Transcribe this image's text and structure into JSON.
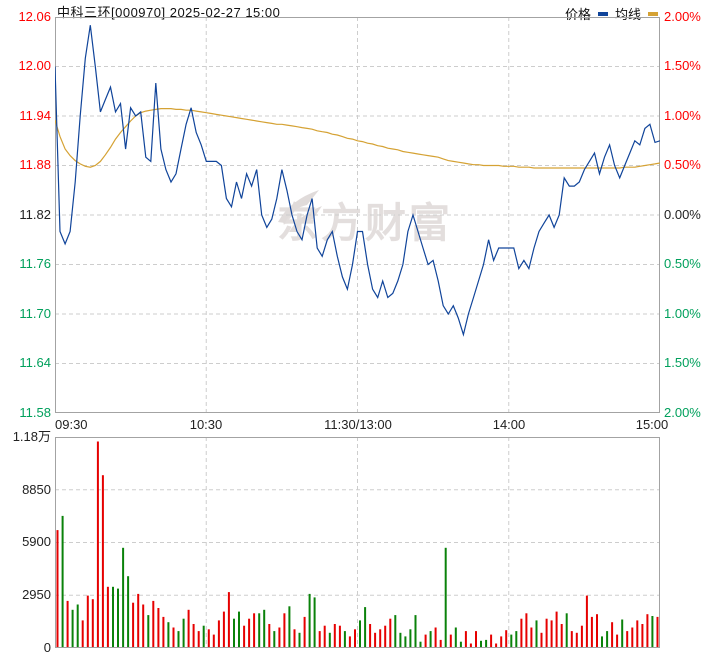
{
  "header": {
    "title": "中科三环[000970] 2025-02-27 15:00",
    "legend": [
      {
        "label": "价格",
        "color": "#10449a"
      },
      {
        "label": "均线",
        "color": "#d5a234"
      }
    ]
  },
  "watermark": {
    "text": "东方财富"
  },
  "colors": {
    "price_line": "#10449a",
    "avg_line": "#d5a234",
    "up_red": "#e60000",
    "down_green": "#0a820a",
    "axis_red": "#ff0000",
    "axis_green": "#00a05c",
    "grid": "#cdcdcd"
  },
  "chart_data": [
    {
      "type": "line",
      "title": "intraday price vs average price",
      "x_ticks": [
        "09:30",
        "10:30",
        "11:30/13:00",
        "14:00",
        "15:00"
      ],
      "x_total_minutes": 240,
      "x_step_minutes": 2,
      "prev_close": 11.82,
      "y_axis_left": {
        "labels": [
          "12.06",
          "12.00",
          "11.94",
          "11.88",
          "11.82",
          "11.76",
          "11.70",
          "11.64",
          "11.58"
        ],
        "max": 12.06,
        "min": 11.58
      },
      "y_axis_right": {
        "labels": [
          "2.00%",
          "1.50%",
          "1.00%",
          "0.50%",
          "0.00%",
          "0.50%",
          "1.00%",
          "1.50%",
          "2.00%"
        ],
        "max_pct": 2.0,
        "min_pct": -2.0
      },
      "grid": true,
      "legend_position": "top-right",
      "series": [
        {
          "name": "价格",
          "color": "#10449a",
          "values": [
            12.0,
            11.8,
            11.785,
            11.8,
            11.86,
            11.94,
            12.01,
            12.05,
            12.0,
            11.945,
            11.96,
            11.975,
            11.945,
            11.955,
            11.9,
            11.95,
            11.94,
            11.945,
            11.89,
            11.885,
            11.98,
            11.9,
            11.875,
            11.86,
            11.87,
            11.9,
            11.93,
            11.95,
            11.92,
            11.905,
            11.885,
            11.885,
            11.885,
            11.88,
            11.84,
            11.83,
            11.86,
            11.84,
            11.87,
            11.855,
            11.875,
            11.82,
            11.805,
            11.815,
            11.84,
            11.875,
            11.85,
            11.82,
            11.8,
            11.79,
            11.82,
            11.84,
            11.78,
            11.77,
            11.79,
            11.8,
            11.77,
            11.745,
            11.73,
            11.76,
            11.8,
            11.8,
            11.76,
            11.73,
            11.72,
            11.74,
            11.72,
            11.725,
            11.74,
            11.76,
            11.8,
            11.82,
            11.8,
            11.78,
            11.76,
            11.765,
            11.74,
            11.71,
            11.7,
            11.71,
            11.695,
            11.675,
            11.7,
            11.72,
            11.74,
            11.76,
            11.79,
            11.765,
            11.78,
            11.78,
            11.78,
            11.78,
            11.755,
            11.765,
            11.755,
            11.78,
            11.8,
            11.81,
            11.82,
            11.805,
            11.82,
            11.865,
            11.855,
            11.855,
            11.86,
            11.875,
            11.885,
            11.895,
            11.87,
            11.89,
            11.905,
            11.88,
            11.865,
            11.88,
            11.895,
            11.91,
            11.905,
            11.925,
            11.93,
            11.908,
            11.91
          ]
        },
        {
          "name": "均线",
          "color": "#d5a234",
          "values": [
            11.935,
            11.915,
            11.9,
            11.892,
            11.886,
            11.882,
            11.879,
            11.878,
            11.88,
            11.885,
            11.893,
            11.902,
            11.912,
            11.92,
            11.927,
            11.934,
            11.94,
            11.944,
            11.946,
            11.947,
            11.948,
            11.949,
            11.949,
            11.949,
            11.948,
            11.948,
            11.947,
            11.947,
            11.946,
            11.945,
            11.944,
            11.943,
            11.942,
            11.941,
            11.94,
            11.939,
            11.938,
            11.937,
            11.936,
            11.935,
            11.934,
            11.933,
            11.932,
            11.931,
            11.93,
            11.93,
            11.929,
            11.928,
            11.927,
            11.926,
            11.925,
            11.924,
            11.922,
            11.921,
            11.92,
            11.918,
            11.917,
            11.915,
            11.913,
            11.912,
            11.91,
            11.909,
            11.907,
            11.906,
            11.904,
            11.903,
            11.901,
            11.9,
            11.899,
            11.897,
            11.896,
            11.895,
            11.894,
            11.893,
            11.892,
            11.891,
            11.89,
            11.888,
            11.886,
            11.885,
            11.884,
            11.883,
            11.882,
            11.881,
            11.881,
            11.88,
            11.88,
            11.88,
            11.88,
            11.879,
            11.879,
            11.879,
            11.878,
            11.878,
            11.878,
            11.877,
            11.877,
            11.877,
            11.877,
            11.877,
            11.877,
            11.877,
            11.877,
            11.877,
            11.877,
            11.877,
            11.877,
            11.877,
            11.877,
            11.877,
            11.877,
            11.877,
            11.877,
            11.878,
            11.878,
            11.878,
            11.879,
            11.88,
            11.881,
            11.882,
            11.883
          ]
        }
      ]
    },
    {
      "type": "bar",
      "title": "volume (hands per minute)",
      "y_axis": {
        "labels": [
          "1.18万",
          "8850",
          "5900",
          "2950",
          "0"
        ],
        "max": 11800,
        "min": 0
      },
      "colors_key": {
        "r": "#e60000",
        "g": "#0a820a"
      },
      "bar_colors": "rgrggrrrrrrggggrrrgrrrgrggrrrgrrrrrggrrrggrgrrgrgrggrrgrrgrrggrrrrrggggggrgrrgrggrrrggrrrrggrrrgrrrrrgrrrrrrggrrgrrrrrgr",
      "values": [
        6600,
        7400,
        2600,
        2100,
        2400,
        1500,
        2900,
        2700,
        11600,
        9700,
        3400,
        3400,
        3300,
        5600,
        4000,
        2500,
        3000,
        2400,
        1800,
        2600,
        2200,
        1700,
        1400,
        1100,
        900,
        1600,
        2100,
        1300,
        900,
        1200,
        1000,
        700,
        1500,
        2000,
        3100,
        1600,
        2000,
        1200,
        1600,
        1900,
        1900,
        2100,
        1300,
        900,
        1100,
        1900,
        2300,
        1000,
        800,
        1700,
        3000,
        2800,
        900,
        1200,
        800,
        1300,
        1200,
        900,
        600,
        1000,
        1500,
        2250,
        1300,
        800,
        1000,
        1200,
        1600,
        1800,
        800,
        600,
        1000,
        1800,
        300,
        700,
        900,
        1100,
        400,
        5600,
        700,
        1100,
        300,
        900,
        200,
        900,
        350,
        400,
        700,
        200,
        600,
        950,
        700,
        900,
        1600,
        1900,
        1100,
        1500,
        800,
        1600,
        1500,
        2000,
        1300,
        1900,
        900,
        800,
        1200,
        2900,
        1700,
        1850,
        600,
        900,
        1400,
        700,
        1550,
        900,
        1100,
        1500,
        1300,
        1850,
        1750,
        1700
      ]
    }
  ]
}
